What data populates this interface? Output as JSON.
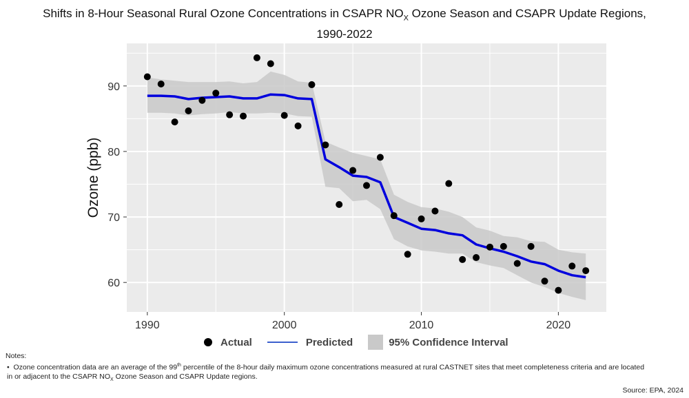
{
  "title": {
    "line1_pre": "Shifts in 8-Hour Seasonal Rural Ozone Concentrations in CSAPR NO",
    "line1_sub": "X",
    "line1_post": " Ozone Season and CSAPR Update Regions,",
    "line2": "1990-2022"
  },
  "legend": {
    "actual": "Actual",
    "predicted": "Predicted",
    "ci": "95% Confidence Interval"
  },
  "notes": {
    "heading": "Notes:",
    "bullet_pre": "Ozone concentration data are an average of the 99",
    "bullet_sup": "th",
    "bullet_mid": " percentile of the 8-hour daily maximum ozone concentrations measured at rural CASTNET sites that meet completeness criteria and are located",
    "bullet_line2_pre": "in or adjacent to the CSAPR NO",
    "bullet_sub": "X",
    "bullet_line2_post": " Ozone Season and CSAPR Update regions."
  },
  "source": "Source: EPA, 2024",
  "colors": {
    "panel": "#ebebeb",
    "grid": "#ffffff",
    "predicted": "#0000dd",
    "ci": "#c9c9c9",
    "actual": "#000000"
  },
  "chart_data": {
    "type": "scatter",
    "ylabel": "Ozone (ppb)",
    "xlabel": "",
    "xlim": [
      1988.5,
      2023.5
    ],
    "ylim": [
      55.5,
      96.5
    ],
    "xticks": [
      1990,
      2000,
      2010,
      2020
    ],
    "yticks": [
      60,
      70,
      80,
      90
    ],
    "grid": true,
    "legend_position": "bottom",
    "actual": {
      "name": "Actual",
      "x": [
        1990,
        1991,
        1992,
        1993,
        1994,
        1995,
        1996,
        1997,
        1998,
        1999,
        2000,
        2001,
        2002,
        2003,
        2004,
        2005,
        2006,
        2007,
        2008,
        2009,
        2010,
        2011,
        2012,
        2013,
        2014,
        2015,
        2016,
        2017,
        2018,
        2019,
        2020,
        2021,
        2022
      ],
      "y": [
        91.4,
        90.3,
        84.5,
        86.2,
        87.8,
        88.9,
        85.6,
        85.4,
        94.3,
        93.4,
        85.5,
        83.9,
        90.2,
        81.0,
        71.9,
        77.1,
        74.8,
        79.1,
        70.2,
        64.3,
        69.7,
        70.9,
        75.1,
        63.5,
        63.8,
        65.4,
        65.5,
        62.9,
        65.5,
        60.2,
        58.8,
        62.5,
        61.8
      ]
    },
    "predicted": {
      "name": "Predicted",
      "x": [
        1990,
        1991,
        1992,
        1993,
        1994,
        1995,
        1996,
        1997,
        1998,
        1999,
        2000,
        2001,
        2002,
        2003,
        2004,
        2005,
        2006,
        2007,
        2008,
        2009,
        2010,
        2011,
        2012,
        2013,
        2014,
        2015,
        2016,
        2017,
        2018,
        2019,
        2020,
        2021,
        2022
      ],
      "y": [
        88.5,
        88.5,
        88.4,
        88.0,
        88.2,
        88.3,
        88.4,
        88.1,
        88.1,
        88.7,
        88.6,
        88.1,
        88.0,
        78.8,
        77.6,
        76.3,
        76.1,
        75.3,
        70.0,
        69.1,
        68.2,
        68.0,
        67.5,
        67.2,
        65.8,
        65.2,
        64.7,
        64.0,
        63.2,
        62.8,
        61.8,
        61.1,
        60.8
      ]
    },
    "ci": {
      "name": "95% Confidence Interval",
      "upper": [
        91.3,
        91.0,
        90.8,
        90.6,
        90.6,
        90.6,
        90.7,
        90.4,
        90.6,
        92.2,
        91.7,
        90.7,
        90.5,
        81.5,
        80.6,
        79.8,
        79.3,
        78.8,
        73.4,
        72.3,
        71.5,
        71.3,
        70.8,
        70.0,
        68.4,
        67.9,
        67.1,
        66.9,
        66.3,
        66.2,
        65.0,
        64.6,
        64.4
      ],
      "lower": [
        85.9,
        85.9,
        85.8,
        85.5,
        85.7,
        85.8,
        86.0,
        85.8,
        85.8,
        85.9,
        85.8,
        85.4,
        85.3,
        74.6,
        74.4,
        72.4,
        72.6,
        71.2,
        66.6,
        65.5,
        64.9,
        64.7,
        64.4,
        64.4,
        63.1,
        62.6,
        62.2,
        61.1,
        60.0,
        59.3,
        58.4,
        57.8,
        57.3
      ]
    }
  }
}
